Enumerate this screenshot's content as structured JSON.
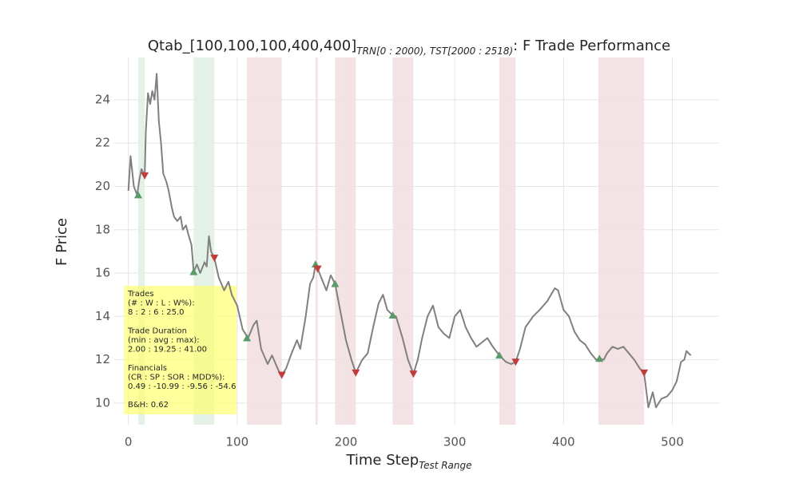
{
  "chart_data": {
    "type": "line",
    "title": {
      "text": "Qtab_[100,100,100,400,400]",
      "subscript": "TRN[0 : 2000), TST[2000 : 2518)",
      "suffix": ": F Trade Performance"
    },
    "xlabel": {
      "text": "Time Step",
      "subscript": "Test Range"
    },
    "ylabel": "F Price",
    "xlim": [
      -13,
      543
    ],
    "ylim": [
      9.0,
      25.95
    ],
    "xticks": [
      0,
      100,
      200,
      300,
      400,
      500
    ],
    "yticks": [
      10,
      12,
      14,
      16,
      18,
      20,
      22,
      24
    ],
    "grid": true,
    "color": "#808080",
    "x": [
      0,
      2,
      5,
      8,
      10,
      12,
      15,
      16,
      18,
      20,
      22,
      24,
      26,
      28,
      30,
      32,
      35,
      37,
      40,
      42,
      45,
      48,
      50,
      53,
      55,
      58,
      60,
      63,
      66,
      70,
      72,
      74,
      76,
      79,
      83,
      88,
      92,
      95,
      100,
      105,
      110,
      115,
      118,
      122,
      128,
      132,
      138,
      141,
      145,
      150,
      155,
      158,
      163,
      167,
      170,
      172,
      174,
      178,
      182,
      186,
      190,
      195,
      200,
      205,
      209,
      215,
      220,
      225,
      230,
      234,
      238,
      243,
      246,
      252,
      257,
      262,
      266,
      270,
      275,
      280,
      285,
      290,
      295,
      300,
      305,
      310,
      315,
      320,
      325,
      330,
      335,
      341,
      347,
      352,
      356,
      360,
      365,
      372,
      378,
      385,
      392,
      395,
      400,
      405,
      410,
      415,
      420,
      425,
      430,
      433,
      437,
      440,
      445,
      450,
      455,
      460,
      465,
      470,
      474,
      476,
      478,
      482,
      485,
      490,
      495,
      500,
      504,
      508,
      511,
      513,
      517
    ],
    "values": [
      19.8,
      21.4,
      20.0,
      19.6,
      20.3,
      20.8,
      20.5,
      22.5,
      24.3,
      23.8,
      24.4,
      24.0,
      25.2,
      23.0,
      22.0,
      20.6,
      20.2,
      19.8,
      19.0,
      18.6,
      18.4,
      18.6,
      18.0,
      18.2,
      17.8,
      17.3,
      16.05,
      16.4,
      16.0,
      16.5,
      16.3,
      17.7,
      17.0,
      16.7,
      15.8,
      15.2,
      15.6,
      15.0,
      14.5,
      13.4,
      13.0,
      13.6,
      13.8,
      12.5,
      11.8,
      12.2,
      11.5,
      11.3,
      11.6,
      12.3,
      12.9,
      12.5,
      14.0,
      15.5,
      15.8,
      16.4,
      16.2,
      15.7,
      15.2,
      15.9,
      15.5,
      14.2,
      12.9,
      12.0,
      11.4,
      12.0,
      12.3,
      13.5,
      14.6,
      15.0,
      14.3,
      14.05,
      14.0,
      13.0,
      12.0,
      11.35,
      12.0,
      13.0,
      14.0,
      14.5,
      13.5,
      13.2,
      13.0,
      14.0,
      14.3,
      13.5,
      13.0,
      12.6,
      12.8,
      13.0,
      12.6,
      12.2,
      11.9,
      11.8,
      11.9,
      12.5,
      13.5,
      14.0,
      14.3,
      14.7,
      15.3,
      15.2,
      14.3,
      14.0,
      13.3,
      12.9,
      12.7,
      12.3,
      12.0,
      12.05,
      12.0,
      12.3,
      12.6,
      12.5,
      12.6,
      12.3,
      12.0,
      11.6,
      11.4,
      10.6,
      9.8,
      10.5,
      9.8,
      10.2,
      10.3,
      10.6,
      11.0,
      11.9,
      12.0,
      12.4,
      12.2
    ],
    "buys": {
      "color": "#5a9a68",
      "x": [
        9,
        60,
        109,
        172,
        190,
        243,
        341,
        433
      ],
      "values": [
        19.6,
        16.05,
        13.0,
        16.4,
        15.5,
        14.05,
        12.2,
        12.05
      ]
    },
    "sells": {
      "color": "#c03d3e",
      "x": [
        15,
        79,
        141,
        174,
        209,
        262,
        356,
        474
      ],
      "values": [
        20.5,
        16.7,
        11.3,
        16.2,
        11.4,
        11.35,
        11.9,
        11.4
      ]
    },
    "spans": [
      {
        "start": 9,
        "end": 15,
        "color": "#e0efe3"
      },
      {
        "start": 60,
        "end": 79,
        "color": "#e0efe3"
      },
      {
        "start": 109,
        "end": 141,
        "color": "#f3e0e1"
      },
      {
        "start": 172,
        "end": 174,
        "color": "#f3e0e1"
      },
      {
        "start": 190,
        "end": 209,
        "color": "#f3e0e1"
      },
      {
        "start": 243,
        "end": 262,
        "color": "#f3e0e1"
      },
      {
        "start": 341,
        "end": 356,
        "color": "#f3e0e1"
      },
      {
        "start": 432,
        "end": 474,
        "color": "#f3e0e1"
      }
    ],
    "annotation": {
      "color": "#ffff66",
      "blocks": [
        [
          "Trades",
          "(# : W : L : W%):",
          "8 : 2 : 6 : 25.0"
        ],
        [
          "Trade Duration",
          "(min : avg : max):",
          "2.00 : 19.25 : 41.00"
        ],
        [
          "Financials",
          "(CR : SP : SOR : MDD%):",
          "0.49 : -10.99 : -9.56 : -54.6"
        ],
        [
          "B&H: 0.62"
        ]
      ]
    }
  }
}
